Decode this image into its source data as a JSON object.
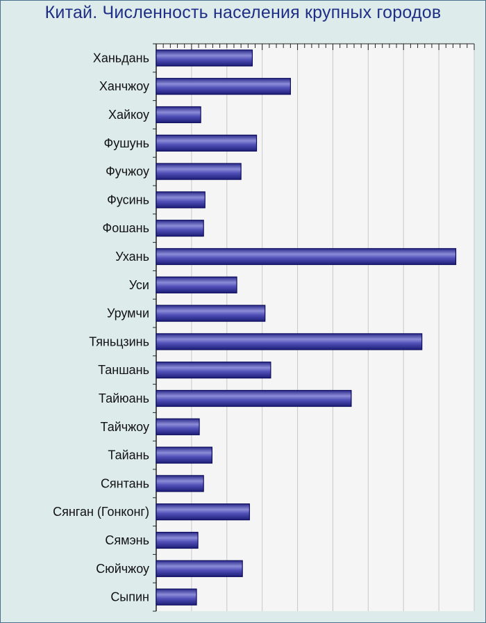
{
  "colors": {
    "background": "#ddebeb",
    "plot_background": "#f5f5f5",
    "bar_fill": "#3a3aa0",
    "bar_edge": "#0b0b5c",
    "title_color": "#1f2f86"
  },
  "chart_data": {
    "type": "bar",
    "orientation": "horizontal",
    "title": "Китай. Численность населения крупных городов",
    "categories": [
      "Ханьдань",
      "Ханчжоу",
      "Хайкоу",
      "Фушунь",
      "Фучжоу",
      "Фусинь",
      "Фошань",
      "Ухань",
      "Уси",
      "Урумчи",
      "Тяньцзинь",
      "Таншань",
      "Тайюань",
      "Тайчжоу",
      "Тайань",
      "Сянтань",
      "Сянган (Гонконг)",
      "Сямэнь",
      "Сюйчжоу",
      "Сыпин"
    ],
    "values": [
      1.36,
      1.9,
      0.63,
      1.42,
      1.2,
      0.69,
      0.67,
      4.24,
      1.14,
      1.54,
      3.76,
      1.62,
      2.76,
      0.61,
      0.79,
      0.67,
      1.32,
      0.59,
      1.22,
      0.57
    ],
    "xlim": [
      0,
      4.5
    ],
    "grid": true,
    "tick_labels_shown": false,
    "legend": "none"
  }
}
